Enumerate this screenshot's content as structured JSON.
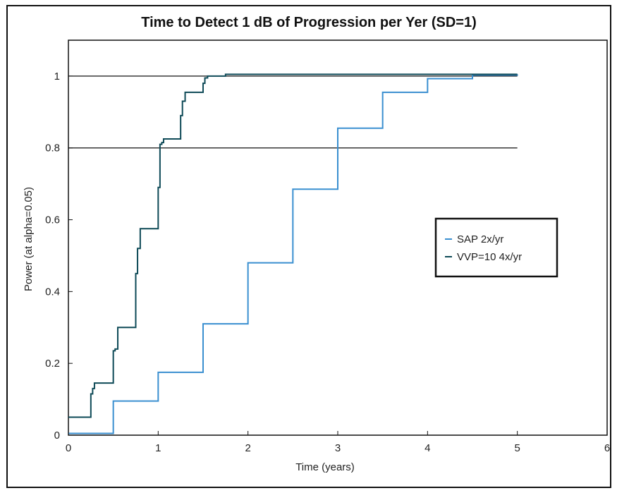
{
  "chart_data": {
    "type": "line",
    "title": "Time to Detect 1 dB of Progression per Yer (SD=1)",
    "xlabel": "Time (years)",
    "ylabel": "Power (at alpha=0.05)",
    "xlim": [
      0,
      6
    ],
    "ylim": [
      0,
      1.1
    ],
    "x_ticks": [
      "0",
      "1",
      "2",
      "3",
      "4",
      "5",
      "6"
    ],
    "y_ticks": [
      "0",
      "0.2",
      "0.4",
      "0.6",
      "0.8",
      "1"
    ],
    "reference_lines": [
      1.0,
      0.8
    ],
    "legend_position": "right",
    "grid": false,
    "series": [
      {
        "name": "SAP 2x/yr",
        "color": "#3a8fd0",
        "step": true,
        "x": [
          0,
          0.5,
          1.0,
          1.5,
          2.0,
          2.5,
          3.0,
          3.5,
          4.0,
          4.5,
          5.0
        ],
        "y": [
          0.005,
          0.095,
          0.175,
          0.31,
          0.48,
          0.685,
          0.855,
          0.955,
          0.993,
          1.003,
          1.005
        ]
      },
      {
        "name": "VVP=10 4x/yr",
        "color": "#0e4a57",
        "step": true,
        "x": [
          0,
          0.25,
          0.27,
          0.29,
          0.5,
          0.52,
          0.55,
          0.75,
          0.77,
          0.8,
          1.0,
          1.02,
          1.04,
          1.06,
          1.25,
          1.27,
          1.3,
          1.5,
          1.52,
          1.55,
          1.75,
          5.0
        ],
        "y": [
          0.05,
          0.115,
          0.13,
          0.145,
          0.235,
          0.24,
          0.3,
          0.45,
          0.52,
          0.575,
          0.69,
          0.81,
          0.815,
          0.825,
          0.89,
          0.93,
          0.955,
          0.98,
          0.995,
          1.0,
          1.005,
          1.005
        ]
      }
    ]
  }
}
